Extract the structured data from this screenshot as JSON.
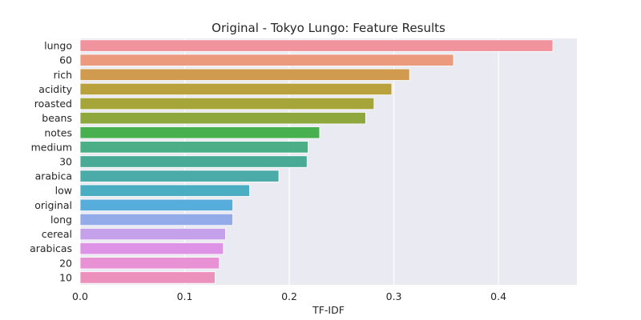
{
  "chart_data": {
    "type": "bar",
    "orientation": "horizontal",
    "title": "Original - Tokyo Lungo: Feature Results",
    "xlabel": "TF-IDF",
    "ylabel": "",
    "xlim": [
      0.0,
      0.475
    ],
    "xticks": [
      "0.0",
      "0.1",
      "0.2",
      "0.3",
      "0.4"
    ],
    "grid": true,
    "background": "#eaeaf2",
    "categories": [
      "lungo",
      "60",
      "rich",
      "acidity",
      "roasted",
      "beans",
      "notes",
      "medium",
      "30",
      "arabica",
      "low",
      "original",
      "long",
      "cereal",
      "arabicas",
      "20",
      "10"
    ],
    "values": [
      0.452,
      0.357,
      0.315,
      0.298,
      0.281,
      0.273,
      0.229,
      0.218,
      0.217,
      0.19,
      0.162,
      0.146,
      0.146,
      0.139,
      0.137,
      0.133,
      0.129
    ],
    "colors": [
      "#f0939c",
      "#eb9a7d",
      "#d09b4f",
      "#b9a23e",
      "#a5a53a",
      "#8fa83e",
      "#48b04f",
      "#4aae86",
      "#49ab96",
      "#4aaba8",
      "#4badc1",
      "#56addc",
      "#94abe9",
      "#c5a1ec",
      "#de93e7",
      "#e891d5",
      "#ec90bc"
    ]
  }
}
